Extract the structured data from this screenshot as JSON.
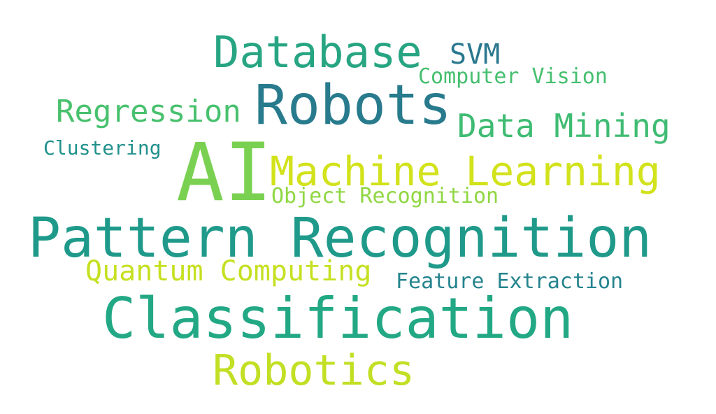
{
  "colors": {
    "background": "#ffffff",
    "green_teal": "#22a284",
    "teal_blue": "#2a788e",
    "light_green": "#5ec962",
    "lime": "#b8de29",
    "yellow_green": "#c8e020",
    "teal": "#21918c",
    "bright_green": "#7ad151",
    "deep_teal": "#27808e"
  },
  "words": {
    "database": "Database",
    "svm": "SVM",
    "computer_vision": "Computer Vision",
    "robots": "Robots",
    "regression": "Regression",
    "data_mining": "Data Mining",
    "clustering": "Clustering",
    "ai": "AI",
    "machine_learning": "Machine Learning",
    "object_recognition": "Object Recognition",
    "pattern_recognition": "Pattern Recognition",
    "quantum_computing": "Quantum Computing",
    "feature_extraction": "Feature Extraction",
    "classification": "Classification",
    "robotics": "Robotics"
  },
  "word_colors": {
    "database": "#27a583",
    "svm": "#2a788e",
    "computer_vision": "#45bf6f",
    "robots": "#287b8d",
    "regression": "#48c16e",
    "data_mining": "#3fbc73",
    "clustering": "#21918c",
    "ai": "#7ad151",
    "machine_learning": "#d2e21b",
    "object_recognition": "#90d743",
    "pattern_recognition": "#1f9a8a",
    "quantum_computing": "#c6e021",
    "feature_extraction": "#25848e",
    "classification": "#22a884",
    "robotics": "#c2df23"
  }
}
